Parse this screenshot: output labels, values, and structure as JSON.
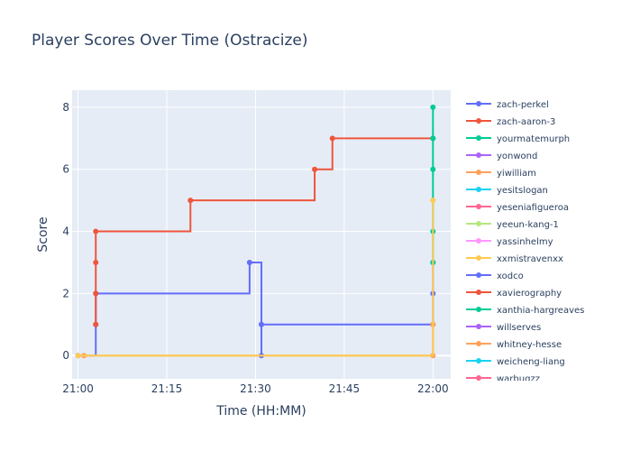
{
  "chart_data": {
    "type": "line",
    "title": "Player Scores Over Time (Ostracize)",
    "xlabel": "Time (HH:MM)",
    "ylabel": "Score",
    "x_ticks": [
      "21:00",
      "21:15",
      "21:30",
      "21:45",
      "22:00"
    ],
    "x_range": [
      "20:59",
      "22:03"
    ],
    "y_ticks": [
      0,
      2,
      4,
      6,
      8
    ],
    "y_range": [
      -0.75,
      8.55
    ],
    "line_shape": "step",
    "plot_bg": "#e5ecf6",
    "grid": true,
    "legend_position": "right",
    "series": [
      {
        "name": "zach-perkel",
        "color": "#636efa",
        "points": [
          [
            "21:00",
            0
          ],
          [
            "21:03",
            1
          ],
          [
            "21:03",
            2
          ],
          [
            "21:29",
            3
          ],
          [
            "21:31",
            0
          ],
          [
            "21:31",
            1
          ],
          [
            "22:00",
            3
          ],
          [
            "22:00",
            2
          ],
          [
            "22:00",
            1
          ]
        ]
      },
      {
        "name": "zach-aaron-3",
        "color": "#ef553b",
        "points": [
          [
            "21:03",
            1
          ],
          [
            "21:03",
            2
          ],
          [
            "21:03",
            3
          ],
          [
            "21:03",
            4
          ],
          [
            "21:19",
            5
          ],
          [
            "21:40",
            6
          ],
          [
            "21:43",
            7
          ],
          [
            "22:00",
            7
          ]
        ]
      },
      {
        "name": "yourmatemurph",
        "color": "#00cc96",
        "points": [
          [
            "22:00",
            3
          ],
          [
            "22:00",
            4
          ],
          [
            "22:00",
            6
          ],
          [
            "22:00",
            7
          ],
          [
            "22:00",
            8
          ]
        ]
      },
      {
        "name": "yonwond",
        "color": "#ab63fa",
        "points": []
      },
      {
        "name": "yiwilliam",
        "color": "#ffa15a",
        "points": [
          [
            "21:01",
            0
          ],
          [
            "22:00",
            0
          ],
          [
            "22:00",
            1
          ]
        ]
      },
      {
        "name": "yesitslogan",
        "color": "#19d3f3",
        "points": []
      },
      {
        "name": "yeseniafigueroa",
        "color": "#ff6692",
        "points": []
      },
      {
        "name": "yeeun-kang-1",
        "color": "#b6e880",
        "points": []
      },
      {
        "name": "yassinhelmy",
        "color": "#ff97ff",
        "points": []
      },
      {
        "name": "xxmistravenxx",
        "color": "#fecb52",
        "points": [
          [
            "21:00",
            0
          ],
          [
            "22:00",
            5
          ]
        ]
      },
      {
        "name": "xodco",
        "color": "#636efa",
        "points": []
      },
      {
        "name": "xavierography",
        "color": "#ef553b",
        "points": []
      },
      {
        "name": "xanthia-hargreaves",
        "color": "#00cc96",
        "points": []
      },
      {
        "name": "willserves",
        "color": "#ab63fa",
        "points": []
      },
      {
        "name": "whitney-hesse",
        "color": "#ffa15a",
        "points": []
      },
      {
        "name": "weicheng-liang",
        "color": "#19d3f3",
        "points": []
      },
      {
        "name": "warbugzz",
        "color": "#ff6692",
        "points": []
      }
    ]
  }
}
